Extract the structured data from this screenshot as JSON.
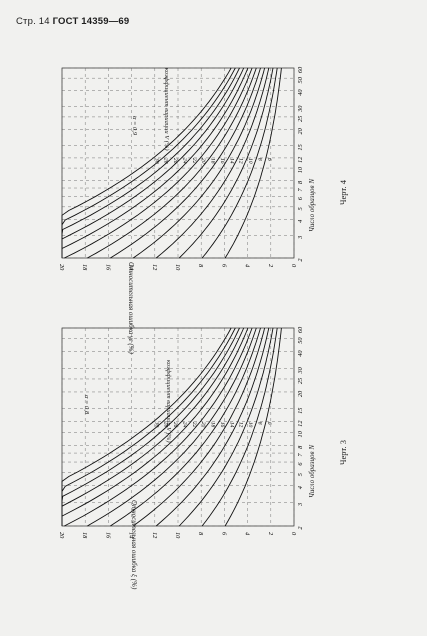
{
  "header": {
    "page": "Стр. 14",
    "standard": "ГОСТ 14359—69"
  },
  "figures": [
    {
      "id": "fig4",
      "caption": "Черт. 4",
      "x_axis_label": "Число образцов N",
      "y_axis_label": "Относительная ошибка γε (%)",
      "curve_family_label": "коэффициент вариации V (%)",
      "alpha_label": "α = 0,9",
      "x_ticks": [
        "2",
        "3",
        "4",
        "5",
        "6",
        "7",
        "8",
        "10",
        "12",
        "15",
        "20",
        "25",
        "30",
        "40",
        "50",
        "60"
      ],
      "y_ticks": [
        "20",
        "18",
        "16",
        "14",
        "12",
        "10",
        "8",
        "6",
        "4",
        "2",
        "0"
      ],
      "curve_values": [
        "30",
        "28",
        "26",
        "24",
        "22",
        "20",
        "18",
        "16",
        "14",
        "12",
        "10",
        "8",
        "6"
      ]
    },
    {
      "id": "fig3",
      "caption": "Черт. 3",
      "x_axis_label": "Число образцов N",
      "y_axis_label": "Относительная ошибка ξ (%)",
      "curve_family_label": "коэффициент вариации V (%)",
      "alpha_label": "α = 0,8",
      "x_ticks": [
        "2",
        "3",
        "4",
        "5",
        "6",
        "7",
        "8",
        "10",
        "12",
        "15",
        "20",
        "25",
        "30",
        "40",
        "50",
        "60"
      ],
      "y_ticks": [
        "20",
        "18",
        "16",
        "14",
        "12",
        "10",
        "8",
        "6",
        "4",
        "2",
        "0"
      ],
      "curve_values": [
        "30",
        "28",
        "26",
        "24",
        "22",
        "20",
        "18",
        "16",
        "14",
        "12",
        "10",
        "8",
        "6"
      ]
    }
  ]
}
